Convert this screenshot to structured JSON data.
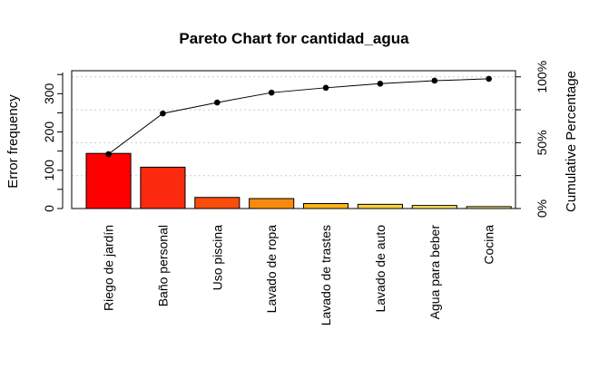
{
  "chart_data": {
    "type": "bar",
    "title": "Pareto Chart for cantidad_agua",
    "ylabel": "Error frequency",
    "y2label": "Cumulative Percentage",
    "categories": [
      "Riego de jardín",
      "Baño personal",
      "Uso piscina",
      "Lavado de ropa",
      "Lavado de trastes",
      "Lavado de auto",
      "Agua para beber",
      "Cocina"
    ],
    "values": [
      144,
      108,
      29,
      26,
      13,
      11,
      8,
      5
    ],
    "cumulative_percent": [
      41.3,
      72.2,
      80.5,
      88.0,
      91.7,
      94.8,
      97.1,
      98.5
    ],
    "bar_colors": [
      "#ff0000",
      "#fb2a0f",
      "#f94d0c",
      "#f98a0e",
      "#fbb21c",
      "#fdd03c",
      "#fde85c",
      "#fff27a"
    ],
    "ylim": [
      0,
      360
    ],
    "yticks": [
      0,
      100,
      200,
      300
    ],
    "y2ticks": [
      "0%",
      "25%",
      "50%",
      "75%",
      "100%"
    ],
    "y2ticks_labeled": [
      "0%",
      "50%",
      "100%"
    ],
    "grid": "dotted horizontal at cumulative quartiles",
    "legend": "none"
  }
}
